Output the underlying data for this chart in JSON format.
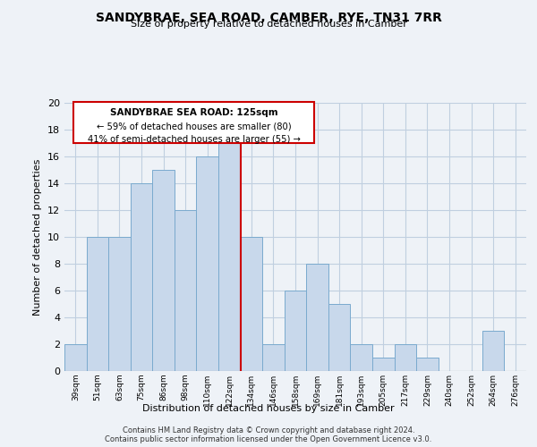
{
  "title": "SANDYBRAE, SEA ROAD, CAMBER, RYE, TN31 7RR",
  "subtitle": "Size of property relative to detached houses in Camber",
  "xlabel": "Distribution of detached houses by size in Camber",
  "ylabel": "Number of detached properties",
  "bar_labels": [
    "39sqm",
    "51sqm",
    "63sqm",
    "75sqm",
    "86sqm",
    "98sqm",
    "110sqm",
    "122sqm",
    "134sqm",
    "146sqm",
    "158sqm",
    "169sqm",
    "181sqm",
    "193sqm",
    "205sqm",
    "217sqm",
    "229sqm",
    "240sqm",
    "252sqm",
    "264sqm",
    "276sqm"
  ],
  "bar_values": [
    2,
    10,
    10,
    14,
    15,
    12,
    16,
    17,
    10,
    2,
    6,
    8,
    5,
    2,
    1,
    2,
    1,
    0,
    0,
    3,
    0
  ],
  "bar_color": "#c8d8eb",
  "bar_edge_color": "#7aaace",
  "highlight_line_color": "#cc0000",
  "vline_index": 7.5,
  "ylim": [
    0,
    20
  ],
  "yticks": [
    0,
    2,
    4,
    6,
    8,
    10,
    12,
    14,
    16,
    18,
    20
  ],
  "annotation_title": "SANDYBRAE SEA ROAD: 125sqm",
  "annotation_line1": "← 59% of detached houses are smaller (80)",
  "annotation_line2": "41% of semi-detached houses are larger (55) →",
  "footer1": "Contains HM Land Registry data © Crown copyright and database right 2024.",
  "footer2": "Contains public sector information licensed under the Open Government Licence v3.0.",
  "background_color": "#eef2f7",
  "grid_color": "#c0cfe0"
}
